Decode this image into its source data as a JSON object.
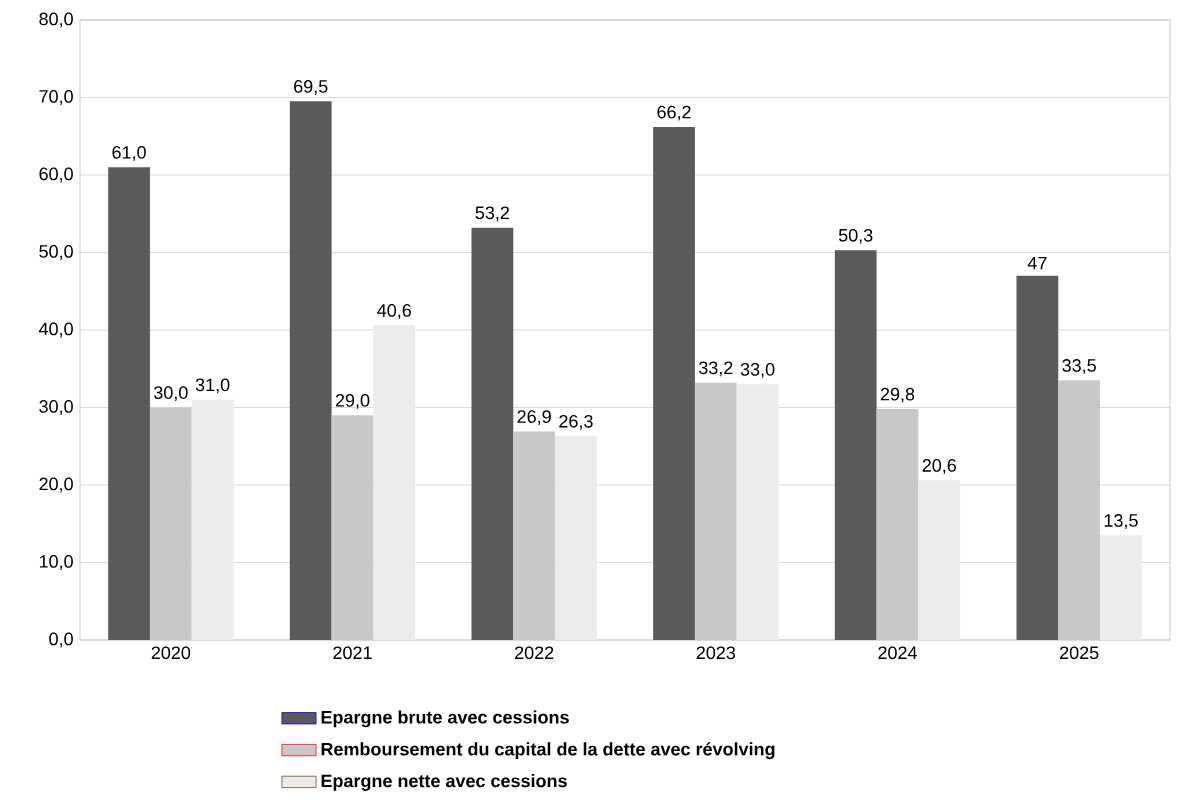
{
  "chart_data": {
    "type": "bar",
    "categories": [
      "2020",
      "2021",
      "2022",
      "2023",
      "2024",
      "2025"
    ],
    "series": [
      {
        "name": "Epargne brute avec cessions",
        "color": "#5a5a5a",
        "values": [
          61.0,
          69.5,
          53.2,
          66.2,
          50.3,
          47
        ],
        "value_labels": [
          "61,0",
          "69,5",
          "53,2",
          "66,2",
          "50,3",
          "47"
        ]
      },
      {
        "name": "Remboursement du capital de la dette avec révolving",
        "color": "#c8c8c8",
        "values": [
          30.0,
          29.0,
          26.9,
          33.2,
          29.8,
          33.5
        ],
        "value_labels": [
          "30,0",
          "29,0",
          "26,9",
          "33,2",
          "29,8",
          "33,5"
        ]
      },
      {
        "name": "Epargne nette avec cessions",
        "color": "#ebebeb",
        "values": [
          31.0,
          40.6,
          26.3,
          33.0,
          20.6,
          13.5
        ],
        "value_labels": [
          "31,0",
          "40,6",
          "26,3",
          "33,0",
          "20,6",
          "13,5"
        ]
      }
    ],
    "ylim": [
      0,
      80
    ],
    "yticks": [
      {
        "value": 0,
        "label": "0,0"
      },
      {
        "value": 10,
        "label": "10,0"
      },
      {
        "value": 20,
        "label": "20,0"
      },
      {
        "value": 30,
        "label": "30,0"
      },
      {
        "value": 40,
        "label": "40,0"
      },
      {
        "value": 50,
        "label": "50,0"
      },
      {
        "value": 60,
        "label": "60,0"
      },
      {
        "value": 70,
        "label": "70,0"
      },
      {
        "value": 80,
        "label": "80,0"
      }
    ],
    "grid": "y",
    "legend": "bottom"
  }
}
